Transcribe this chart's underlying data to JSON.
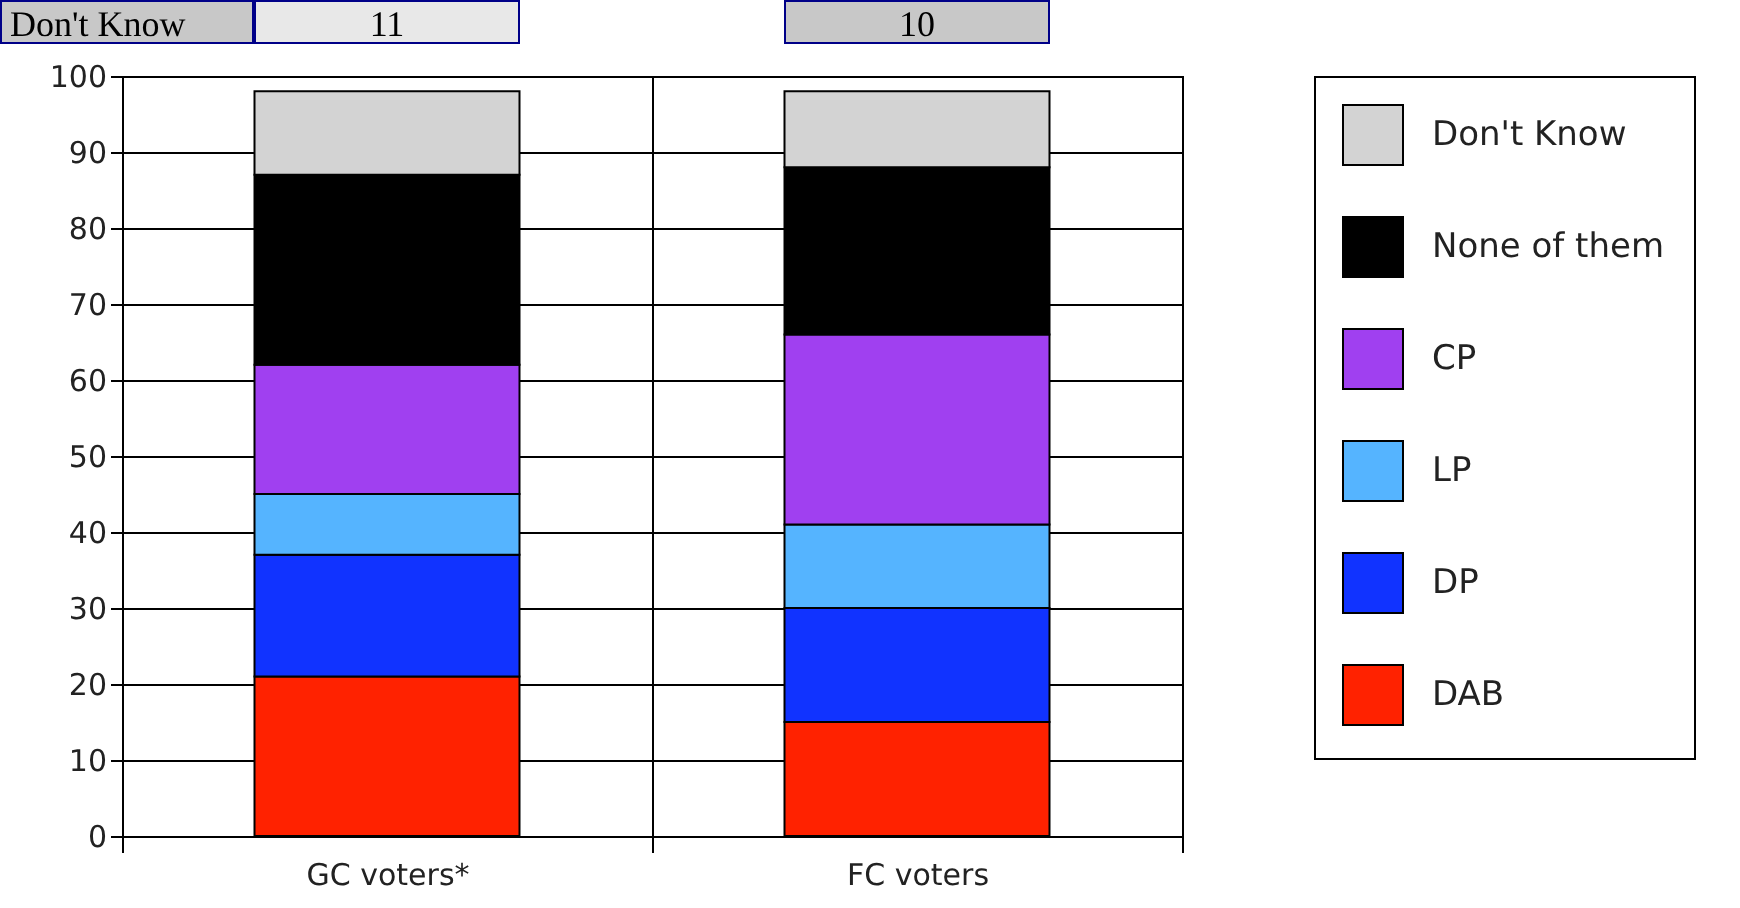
{
  "chart_data": {
    "type": "bar",
    "stacked": true,
    "categories": [
      "GC voters*",
      "FC voters"
    ],
    "series": [
      {
        "name": "DAB",
        "color": "#ff2200",
        "values": [
          21,
          15
        ]
      },
      {
        "name": "DP",
        "color": "#1133ff",
        "values": [
          16,
          15
        ]
      },
      {
        "name": "LP",
        "color": "#55b4ff",
        "values": [
          8,
          11
        ]
      },
      {
        "name": "CP",
        "color": "#a040f0",
        "values": [
          17,
          25
        ]
      },
      {
        "name": "None of them",
        "color": "#000000",
        "values": [
          25,
          22
        ]
      },
      {
        "name": "Don't Know",
        "color": "#d3d3d3",
        "values": [
          11,
          10
        ],
        "value_labels": [
          "11",
          "10"
        ]
      }
    ],
    "ylim": [
      0,
      100
    ],
    "yticks": [
      0,
      10,
      20,
      30,
      40,
      50,
      60,
      70,
      80,
      90,
      100
    ],
    "grid": true,
    "legend": "right"
  }
}
